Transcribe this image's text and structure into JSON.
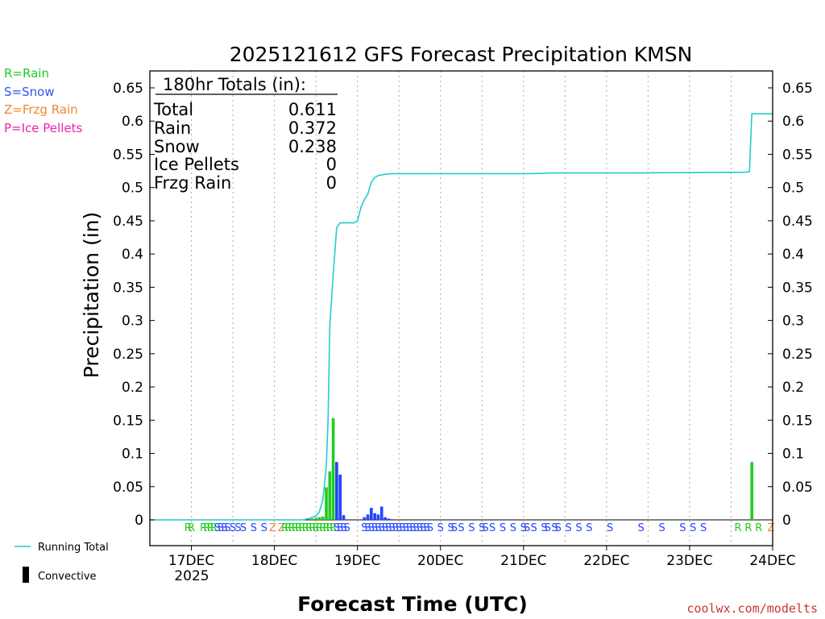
{
  "chart_data": {
    "type": "bar",
    "title": "2025121612 GFS Forecast Precipitation KMSN",
    "ylabel": "Precipitation (in)",
    "xlabel": "Forecast Time (UTC)",
    "ylim": [
      -0.015,
      0.65
    ],
    "ytick_values": [
      0,
      0.05,
      0.1,
      0.15,
      0.2,
      0.25,
      0.3,
      0.35,
      0.4,
      0.45,
      0.5,
      0.55,
      0.6,
      0.65
    ],
    "ytick_labels": [
      "0",
      "0.05",
      "0.1",
      "0.15",
      "0.2",
      "0.25",
      "0.3",
      "0.35",
      "0.4",
      "0.45",
      "0.5",
      "0.55",
      "0.6",
      "0.65"
    ],
    "xlim_hours": [
      0,
      180
    ],
    "x_ticks": [
      {
        "hour": 12,
        "label": "17DEC"
      },
      {
        "hour": 36,
        "label": "18DEC"
      },
      {
        "hour": 60,
        "label": "19DEC"
      },
      {
        "hour": 84,
        "label": "20DEC"
      },
      {
        "hour": 108,
        "label": "21DEC"
      },
      {
        "hour": 132,
        "label": "22DEC"
      },
      {
        "hour": 156,
        "label": "23DEC"
      },
      {
        "hour": 180,
        "label": "24DEC"
      }
    ],
    "year_label": "2025",
    "legend_types": [
      {
        "label": "R=Rain",
        "color": "#22cc22"
      },
      {
        "label": "S=Snow",
        "color": "#3355ee"
      },
      {
        "label": "Z=Frzg Rain",
        "color": "#ee8833"
      },
      {
        "label": "P=Ice Pellets",
        "color": "#ee22aa"
      }
    ],
    "legend_series": {
      "running_total": "Running Total",
      "convective": "Convective"
    },
    "totals": {
      "header": "180hr Totals (in):",
      "rows": [
        {
          "label": "Total",
          "value": "0.611"
        },
        {
          "label": "Rain",
          "value": "0.372"
        },
        {
          "label": "Snow",
          "value": "0.238"
        },
        {
          "label": "Ice Pellets",
          "value": "0"
        },
        {
          "label": "Frzg Rain",
          "value": "0"
        }
      ]
    },
    "bars": [
      {
        "hour": 47,
        "value": 0.002,
        "type": "rain"
      },
      {
        "hour": 48,
        "value": 0.003,
        "type": "rain"
      },
      {
        "hour": 49,
        "value": 0.004,
        "type": "rain"
      },
      {
        "hour": 50,
        "value": 0.005,
        "type": "rain"
      },
      {
        "hour": 51,
        "value": 0.049,
        "type": "rain"
      },
      {
        "hour": 52,
        "value": 0.073,
        "type": "rain"
      },
      {
        "hour": 53,
        "value": 0.153,
        "type": "rain"
      },
      {
        "hour": 54,
        "value": 0.087,
        "type": "snow"
      },
      {
        "hour": 55,
        "value": 0.068,
        "type": "snow"
      },
      {
        "hour": 56,
        "value": 0.007,
        "type": "snow"
      },
      {
        "hour": 62,
        "value": 0.004,
        "type": "snow"
      },
      {
        "hour": 63,
        "value": 0.008,
        "type": "snow"
      },
      {
        "hour": 64,
        "value": 0.018,
        "type": "snow"
      },
      {
        "hour": 65,
        "value": 0.01,
        "type": "snow"
      },
      {
        "hour": 66,
        "value": 0.008,
        "type": "snow"
      },
      {
        "hour": 67,
        "value": 0.02,
        "type": "snow"
      },
      {
        "hour": 68,
        "value": 0.004,
        "type": "snow"
      },
      {
        "hour": 69,
        "value": 0.002,
        "type": "snow"
      },
      {
        "hour": 70,
        "value": 0.001,
        "type": "snow"
      },
      {
        "hour": 174,
        "value": 0.087,
        "type": "rain"
      }
    ],
    "running_total": [
      [
        0,
        0
      ],
      [
        44,
        0
      ],
      [
        46,
        0.002
      ],
      [
        48,
        0.006
      ],
      [
        49,
        0.012
      ],
      [
        50,
        0.03
      ],
      [
        51,
        0.08
      ],
      [
        51.5,
        0.15
      ],
      [
        52,
        0.29
      ],
      [
        53,
        0.37
      ],
      [
        54,
        0.44
      ],
      [
        55,
        0.447
      ],
      [
        57,
        0.447
      ],
      [
        59,
        0.447
      ],
      [
        60,
        0.45
      ],
      [
        61,
        0.47
      ],
      [
        62,
        0.482
      ],
      [
        63,
        0.49
      ],
      [
        64,
        0.508
      ],
      [
        65,
        0.515
      ],
      [
        66,
        0.518
      ],
      [
        68,
        0.52
      ],
      [
        70,
        0.521
      ],
      [
        80,
        0.521
      ],
      [
        110,
        0.521
      ],
      [
        117,
        0.522
      ],
      [
        140,
        0.522
      ],
      [
        172,
        0.523
      ],
      [
        173.3,
        0.524
      ],
      [
        174,
        0.611
      ],
      [
        180,
        0.611
      ]
    ],
    "ptype_markers": [
      {
        "hour": 11,
        "code": "R"
      },
      {
        "hour": 12,
        "code": "R"
      },
      {
        "hour": 15.5,
        "code": "R"
      },
      {
        "hour": 16.5,
        "code": "R"
      },
      {
        "hour": 17.5,
        "code": "R"
      },
      {
        "hour": 18.5,
        "code": "R"
      },
      {
        "hour": 19.5,
        "code": "S"
      },
      {
        "hour": 20.5,
        "code": "S"
      },
      {
        "hour": 21.5,
        "code": "S"
      },
      {
        "hour": 22.5,
        "code": "S"
      },
      {
        "hour": 24,
        "code": "S"
      },
      {
        "hour": 25.5,
        "code": "S"
      },
      {
        "hour": 27,
        "code": "S"
      },
      {
        "hour": 30,
        "code": "S"
      },
      {
        "hour": 33,
        "code": "S"
      },
      {
        "hour": 35.5,
        "code": "Z"
      },
      {
        "hour": 38,
        "code": "Z"
      },
      {
        "hour": 39,
        "code": "R"
      },
      {
        "hour": 40,
        "code": "R"
      },
      {
        "hour": 41,
        "code": "R"
      },
      {
        "hour": 42,
        "code": "R"
      },
      {
        "hour": 43,
        "code": "R"
      },
      {
        "hour": 44,
        "code": "R"
      },
      {
        "hour": 45,
        "code": "R"
      },
      {
        "hour": 46,
        "code": "R"
      },
      {
        "hour": 47,
        "code": "R"
      },
      {
        "hour": 48,
        "code": "R"
      },
      {
        "hour": 49,
        "code": "R"
      },
      {
        "hour": 50,
        "code": "R"
      },
      {
        "hour": 51,
        "code": "R"
      },
      {
        "hour": 52,
        "code": "R"
      },
      {
        "hour": 53,
        "code": "R"
      },
      {
        "hour": 54,
        "code": "S"
      },
      {
        "hour": 55,
        "code": "S"
      },
      {
        "hour": 56,
        "code": "S"
      },
      {
        "hour": 57,
        "code": "S"
      },
      {
        "hour": 62,
        "code": "S"
      },
      {
        "hour": 63,
        "code": "S"
      },
      {
        "hour": 64,
        "code": "S"
      },
      {
        "hour": 65,
        "code": "S"
      },
      {
        "hour": 66,
        "code": "S"
      },
      {
        "hour": 67,
        "code": "S"
      },
      {
        "hour": 68,
        "code": "S"
      },
      {
        "hour": 69,
        "code": "S"
      },
      {
        "hour": 70,
        "code": "S"
      },
      {
        "hour": 71,
        "code": "S"
      },
      {
        "hour": 72,
        "code": "S"
      },
      {
        "hour": 73,
        "code": "S"
      },
      {
        "hour": 74,
        "code": "S"
      },
      {
        "hour": 75,
        "code": "S"
      },
      {
        "hour": 76,
        "code": "S"
      },
      {
        "hour": 77,
        "code": "S"
      },
      {
        "hour": 78,
        "code": "S"
      },
      {
        "hour": 79,
        "code": "S"
      },
      {
        "hour": 80,
        "code": "S"
      },
      {
        "hour": 81,
        "code": "S"
      },
      {
        "hour": 84,
        "code": "S"
      },
      {
        "hour": 87,
        "code": "S"
      },
      {
        "hour": 88,
        "code": "S"
      },
      {
        "hour": 90,
        "code": "S"
      },
      {
        "hour": 93,
        "code": "S"
      },
      {
        "hour": 96,
        "code": "S"
      },
      {
        "hour": 97,
        "code": "S"
      },
      {
        "hour": 99,
        "code": "S"
      },
      {
        "hour": 102,
        "code": "S"
      },
      {
        "hour": 105,
        "code": "S"
      },
      {
        "hour": 108,
        "code": "S"
      },
      {
        "hour": 109,
        "code": "S"
      },
      {
        "hour": 111,
        "code": "S"
      },
      {
        "hour": 114,
        "code": "S"
      },
      {
        "hour": 115,
        "code": "S"
      },
      {
        "hour": 117,
        "code": "S"
      },
      {
        "hour": 118,
        "code": "S"
      },
      {
        "hour": 121,
        "code": "S"
      },
      {
        "hour": 124,
        "code": "S"
      },
      {
        "hour": 127,
        "code": "S"
      },
      {
        "hour": 133,
        "code": "S"
      },
      {
        "hour": 142,
        "code": "S"
      },
      {
        "hour": 148,
        "code": "S"
      },
      {
        "hour": 154,
        "code": "S"
      },
      {
        "hour": 157,
        "code": "S"
      },
      {
        "hour": 160,
        "code": "S"
      },
      {
        "hour": 170,
        "code": "R"
      },
      {
        "hour": 173,
        "code": "R"
      },
      {
        "hour": 176,
        "code": "R"
      },
      {
        "hour": 179.5,
        "code": "Z"
      }
    ],
    "colors": {
      "rain": "#22cc22",
      "snow": "#2244ff",
      "frzg_rain": "#ee8833",
      "ice_pellets": "#ee22aa",
      "running_total": "#22cccc",
      "convective": "#000000",
      "grid": "#aaaaaa"
    }
  },
  "credit": "coolwx.com/modelts"
}
